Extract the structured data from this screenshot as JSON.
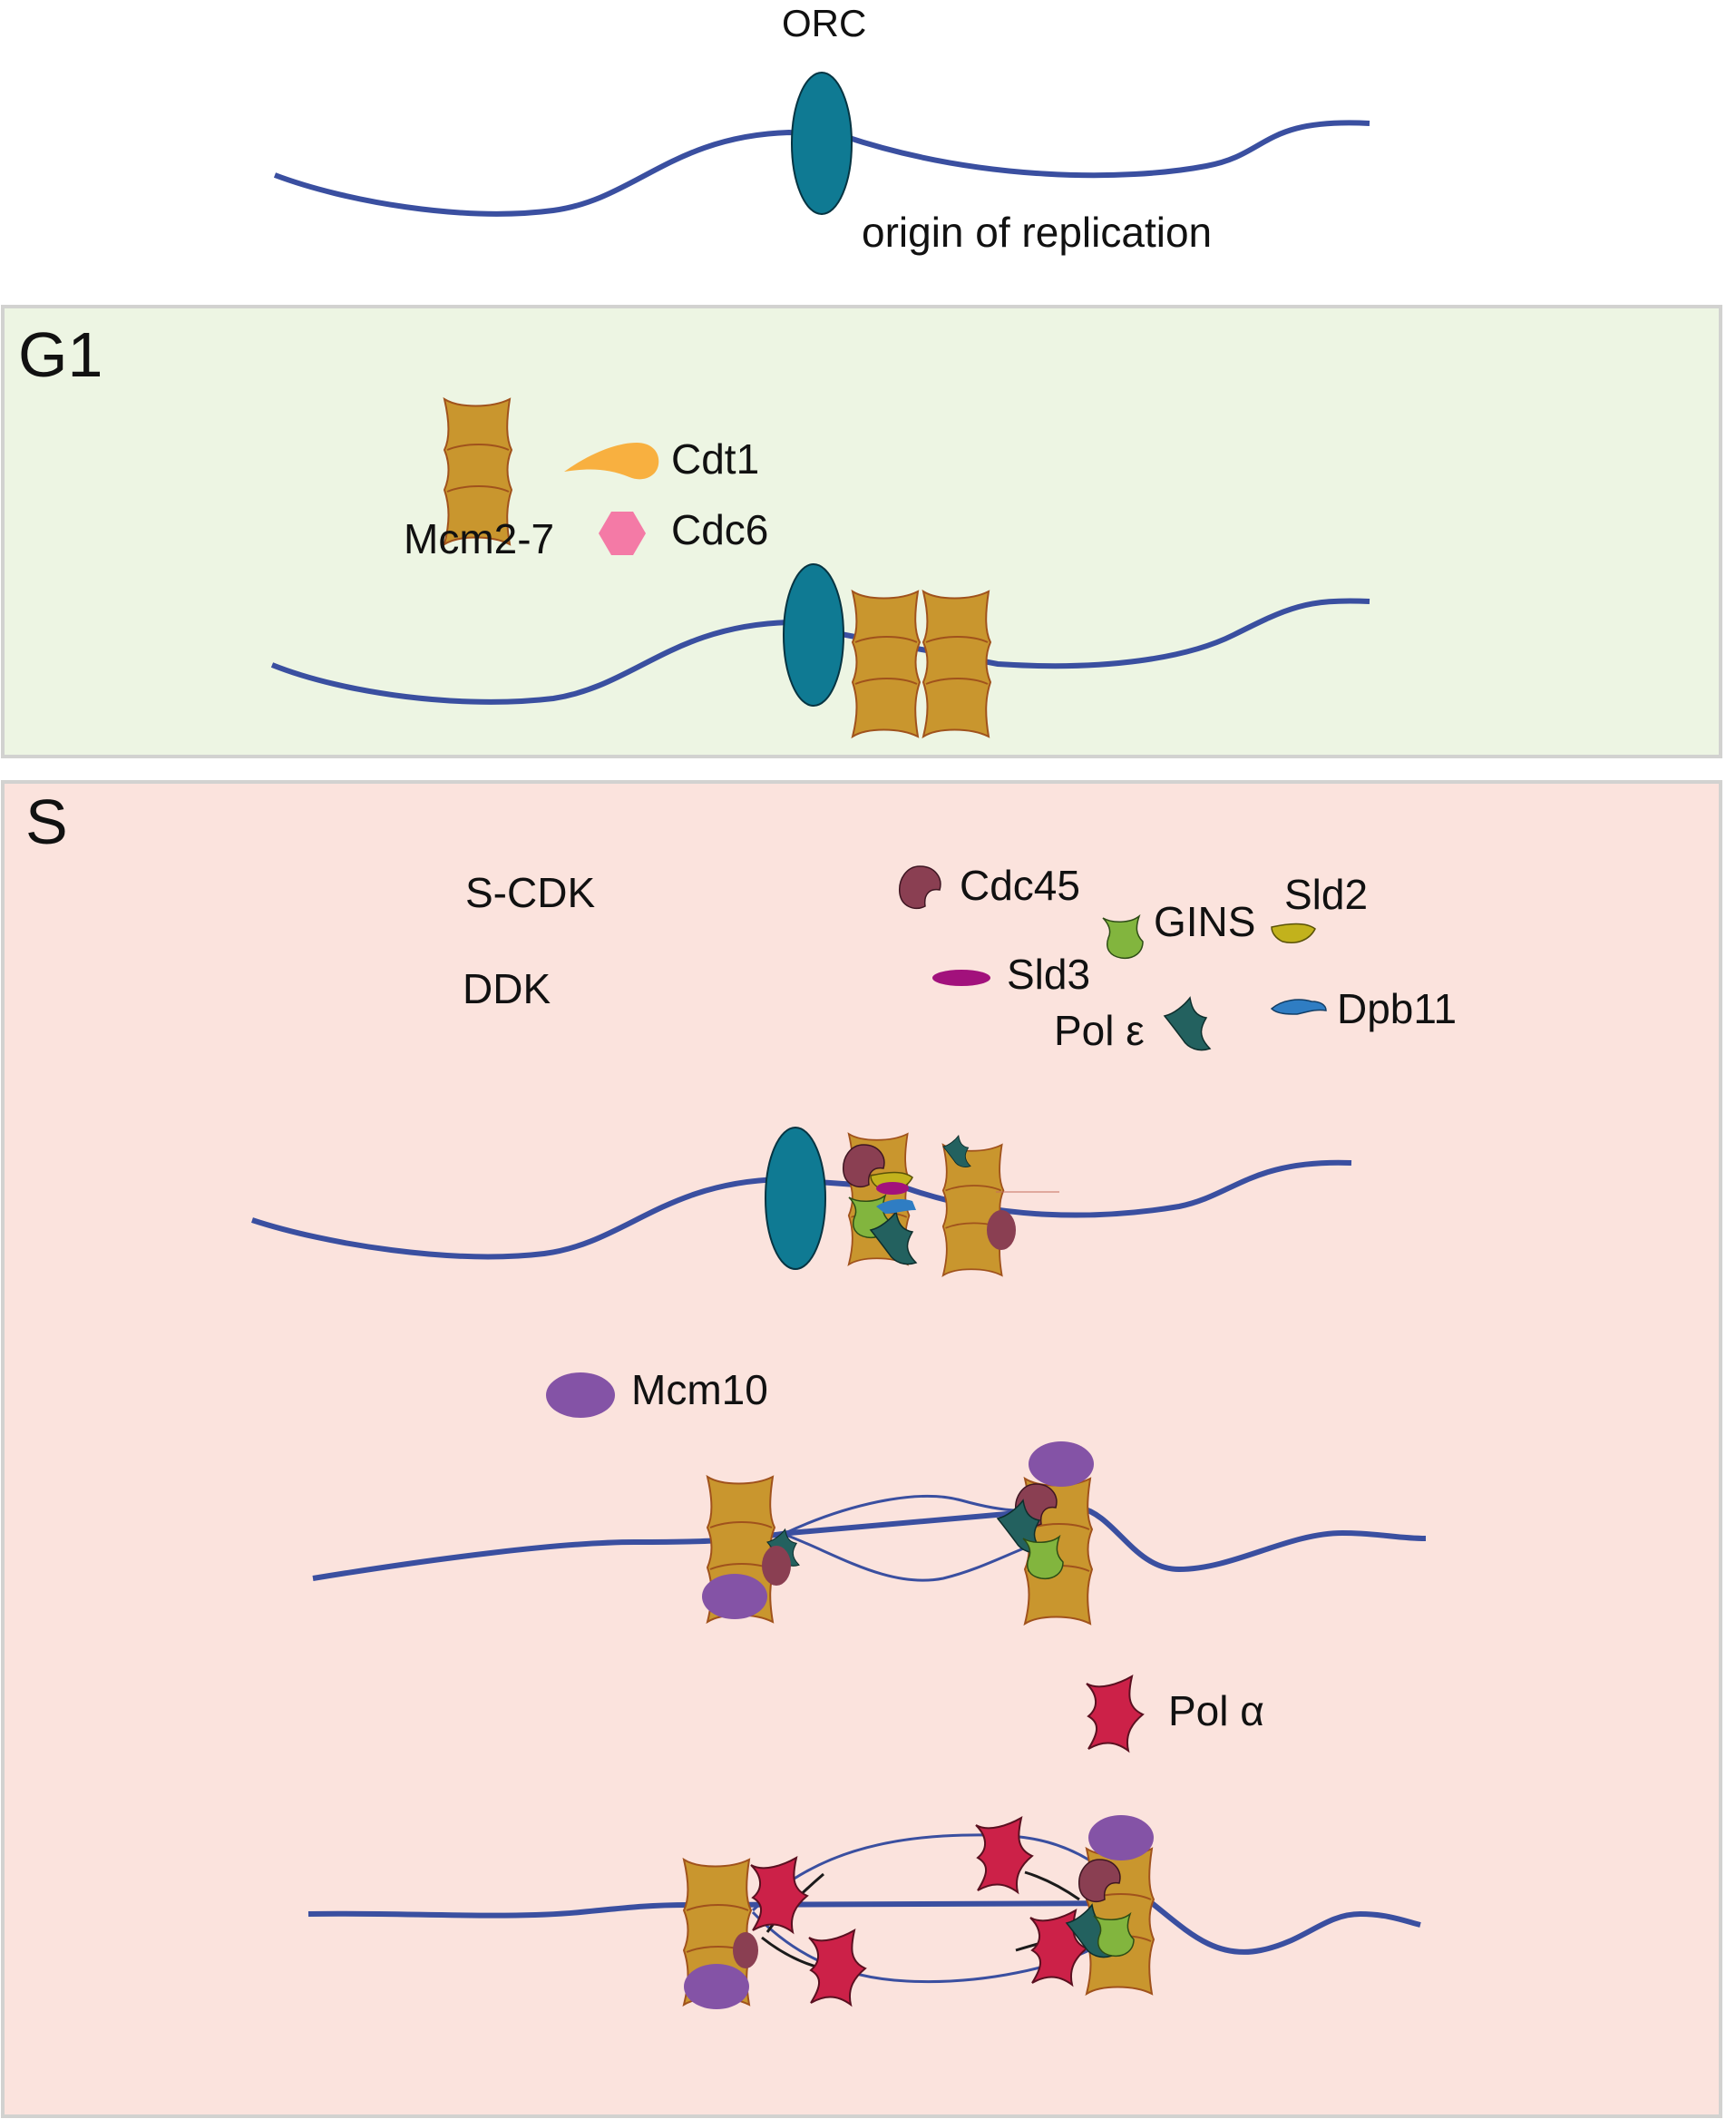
{
  "top": {
    "orc_label": "ORC",
    "origin_label": "origin of replication"
  },
  "g1": {
    "title": "G1",
    "mcm_label": "Mcm2-7",
    "cdt1_label": "Cdt1",
    "cdc6_label": "Cdc6"
  },
  "s": {
    "title": "S",
    "scdk_label": "S-CDK",
    "ddk_label": "DDK",
    "cdc45_label": "Cdc45",
    "gins_label": "GINS",
    "sld2_label": "Sld2",
    "sld3_label": "Sld3",
    "pole_label": "Pol ε",
    "dpb11_label": "Dpb11",
    "mcm10_label": "Mcm10",
    "pola_label": "Pol α"
  },
  "colors": {
    "dna": "#3a4fa0",
    "orc": "#0f7a93",
    "mcm": "#c9962e",
    "mcm_edge": "#a0521c",
    "cdt1": "#f8b040",
    "cdc6": "#f47aa6",
    "cdc45": "#8a3f52",
    "gins": "#82b53e",
    "sld2": "#c2b21c",
    "sld3": "#a2117c",
    "pole": "#23615f",
    "dpb11": "#2f7dc3",
    "mcm10": "#8453a6",
    "pola": "#cc2148",
    "g1_bg": "#edf5e3",
    "s_bg": "#fbe3dd",
    "panel_border": "#d2d2d0"
  }
}
